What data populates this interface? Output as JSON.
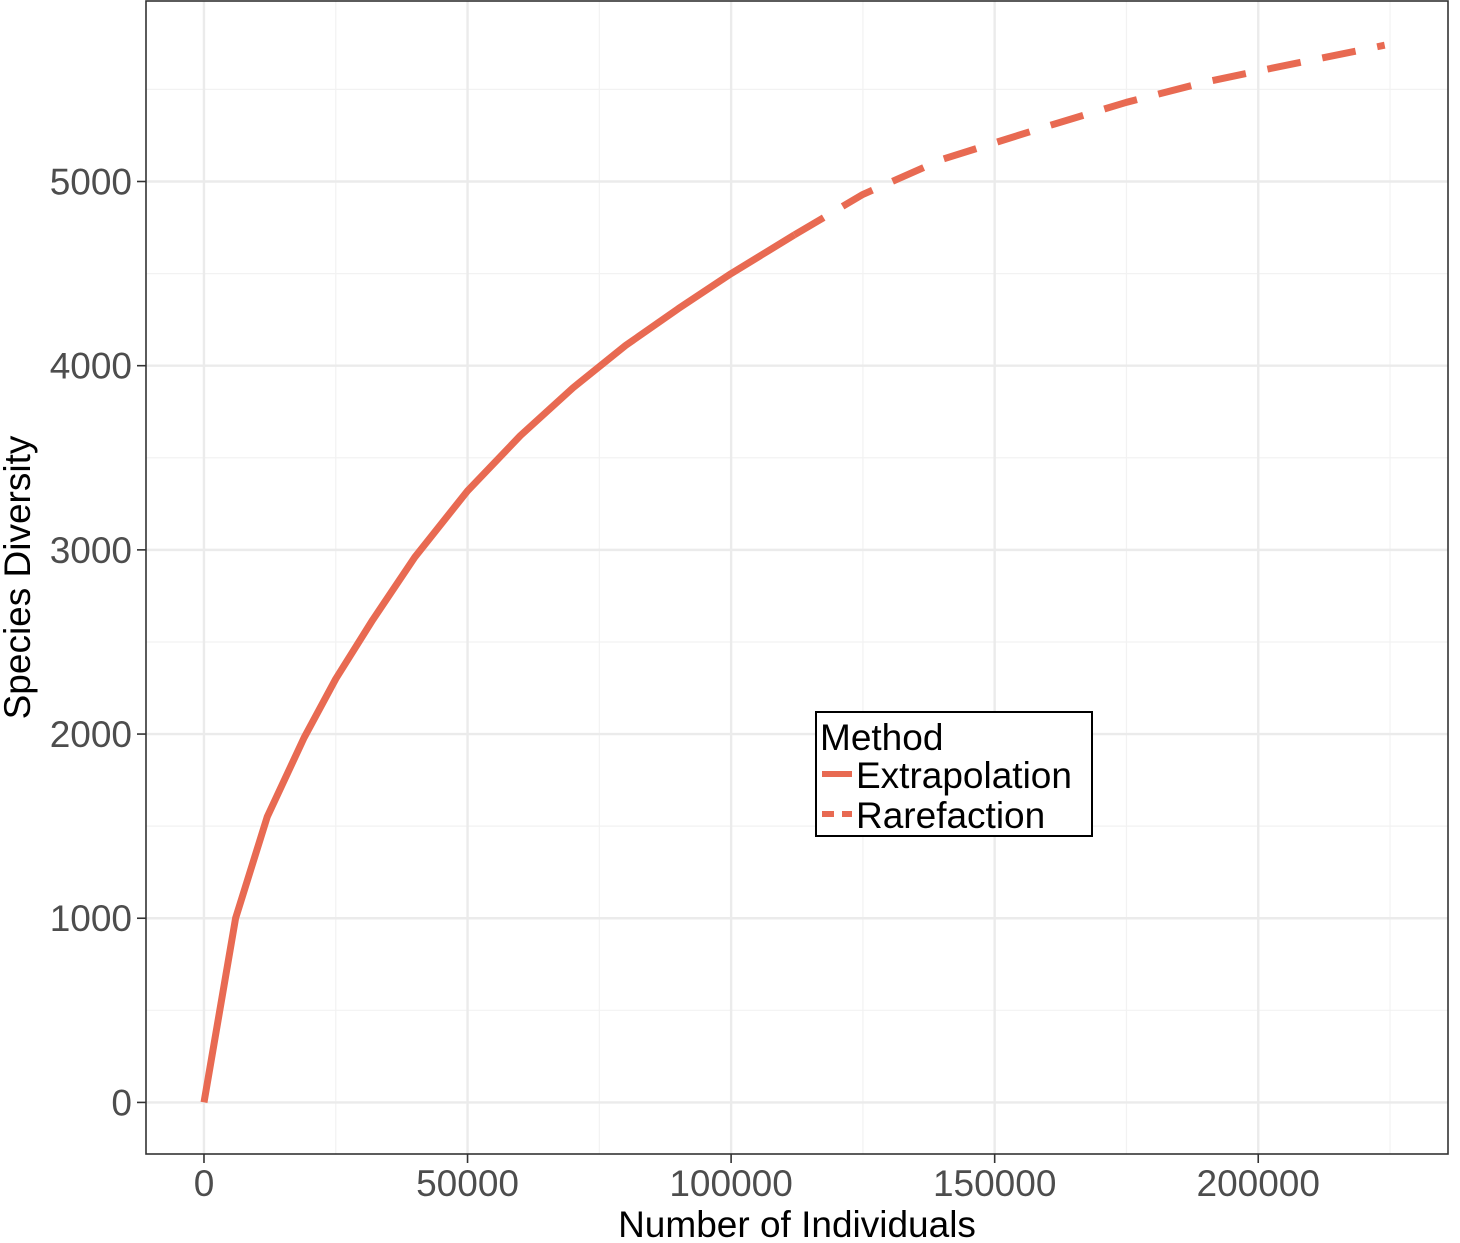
{
  "chart_data": {
    "type": "line",
    "xlabel": "Number of Individuals",
    "ylabel": "Species Diversity",
    "xlim": [
      -11000,
      236000
    ],
    "ylim": [
      -280,
      5980
    ],
    "x_ticks": [
      0,
      50000,
      100000,
      150000,
      200000
    ],
    "x_tick_labels": [
      "0",
      "50000",
      "100000",
      "150000",
      "200000"
    ],
    "y_ticks": [
      0,
      1000,
      2000,
      3000,
      4000,
      5000
    ],
    "y_tick_labels": [
      "0",
      "1000",
      "2000",
      "3000",
      "4000",
      "5000"
    ],
    "grid": true,
    "legend": {
      "title": "Method",
      "placement": "inside-center-right",
      "entries": [
        "Extrapolation",
        "Rarefaction"
      ]
    },
    "color": "#e86a52",
    "series": [
      {
        "name": "Extrapolation",
        "style": "solid",
        "x": [
          0,
          6000,
          12000,
          19000,
          25000,
          32000,
          40000,
          50000,
          60000,
          70000,
          80000,
          90000,
          100000,
          112000
        ],
        "y": [
          0,
          1000,
          1550,
          1980,
          2300,
          2620,
          2960,
          3320,
          3620,
          3880,
          4110,
          4310,
          4500,
          4710
        ]
      },
      {
        "name": "Rarefaction",
        "style": "dashed",
        "x": [
          112000,
          125000,
          140000,
          150000,
          160000,
          175000,
          190000,
          200000,
          212000,
          224000
        ],
        "y": [
          4710,
          4930,
          5120,
          5210,
          5300,
          5430,
          5540,
          5600,
          5670,
          5740
        ]
      }
    ]
  }
}
